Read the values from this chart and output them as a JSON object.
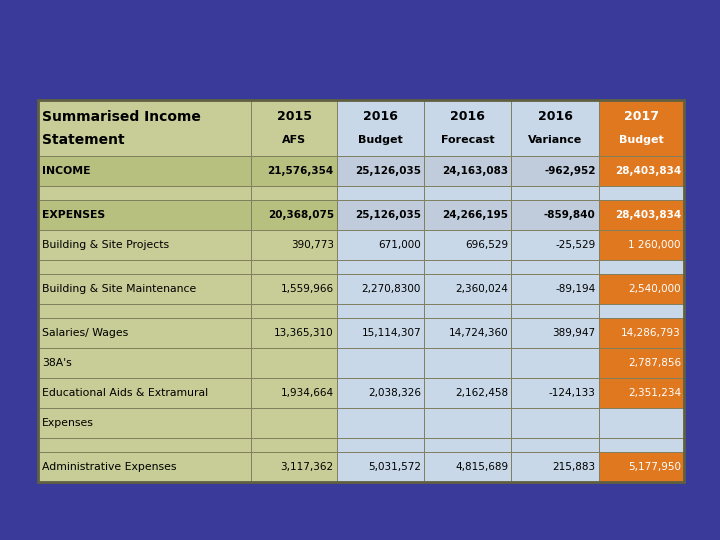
{
  "title_line1": "Summarised Income",
  "title_line2": "Statement",
  "col_headers": [
    "2015",
    "2016",
    "2016",
    "2016",
    "2017"
  ],
  "col_subheaders": [
    "AFS",
    "Budget",
    "Forecast",
    "Variance",
    "Budget"
  ],
  "rows": [
    {
      "label": "INCOME",
      "vals": [
        "21,576,354",
        "25,126,035",
        "24,163,083",
        "-962,952",
        "28,403,834"
      ],
      "label_bold": true,
      "row_style": "income"
    },
    {
      "label": "",
      "vals": [
        "",
        "",
        "",
        "",
        ""
      ],
      "label_bold": false,
      "row_style": "spacer"
    },
    {
      "label": "EXPENSES",
      "vals": [
        "20,368,075",
        "25,126,035",
        "24,266,195",
        "-859,840",
        "28,403,834"
      ],
      "label_bold": true,
      "row_style": "expense_header"
    },
    {
      "label": "Building & Site Projects",
      "vals": [
        "390,773",
        "671,000",
        "696,529",
        "-25,529",
        "1 260,000"
      ],
      "label_bold": false,
      "row_style": "normal"
    },
    {
      "label": "",
      "vals": [
        "",
        "",
        "",
        "",
        ""
      ],
      "label_bold": false,
      "row_style": "spacer"
    },
    {
      "label": "Building & Site Maintenance",
      "vals": [
        "1,559,966",
        "2,270,8300",
        "2,360,024",
        "-89,194",
        "2,540,000"
      ],
      "label_bold": false,
      "row_style": "normal"
    },
    {
      "label": "",
      "vals": [
        "",
        "",
        "",
        "",
        ""
      ],
      "label_bold": false,
      "row_style": "spacer"
    },
    {
      "label": "Salaries/ Wages",
      "vals": [
        "13,365,310",
        "15,114,307",
        "14,724,360",
        "389,947",
        "14,286,793"
      ],
      "label_bold": false,
      "row_style": "normal"
    },
    {
      "label": "38A's",
      "vals": [
        "",
        "",
        "",
        "",
        "2,787,856"
      ],
      "label_bold": false,
      "row_style": "normal"
    },
    {
      "label": "Educational Aids & Extramural",
      "vals": [
        "1,934,664",
        "2,038,326",
        "2,162,458",
        "-124,133",
        "2,351,234"
      ],
      "label_bold": false,
      "row_style": "normal"
    },
    {
      "label": "Expenses",
      "vals": [
        "",
        "",
        "",
        "",
        ""
      ],
      "label_bold": false,
      "row_style": "sub_label"
    },
    {
      "label": "",
      "vals": [
        "",
        "",
        "",
        "",
        ""
      ],
      "label_bold": false,
      "row_style": "spacer"
    },
    {
      "label": "Administrative Expenses",
      "vals": [
        "3,117,362",
        "5,031,572",
        "4,815,689",
        "215,883",
        "5,177,950"
      ],
      "label_bold": false,
      "row_style": "normal"
    }
  ],
  "bg_color": "#3a3a9a",
  "label_col_color": "#c8cc96",
  "col0_header_color": "#c8cc96",
  "col1_header_color": "#c8cc96",
  "col2_header_color": "#c8d8e8",
  "col3_header_color": "#c8d8e8",
  "col4_header_color": "#c8d8e8",
  "col5_header_color": "#e07820",
  "data_col_colors": [
    "#c8cc96",
    "#c8d8e8",
    "#c8d8e8",
    "#c8d8e8",
    "#e07820"
  ],
  "income_label_color": "#b8c080",
  "income_data_colors": [
    "#b8c080",
    "#c0ccdc",
    "#c0ccdc",
    "#c0ccdc",
    "#e07820"
  ],
  "expense_label_color": "#b8c080",
  "expense_data_colors": [
    "#b8c080",
    "#c0ccdc",
    "#c0ccdc",
    "#c0ccdc",
    "#e07820"
  ],
  "normal_label_color": "#c8cc96",
  "normal_data_colors": [
    "#c8cc96",
    "#c8d8e8",
    "#c8d8e8",
    "#c8d8e8",
    "#e07820"
  ],
  "spacer_label_color": "#c8cc96",
  "spacer_data_colors": [
    "#c8cc96",
    "#c8d8e8",
    "#c8d8e8",
    "#c8d8e8",
    "#c8d8e8"
  ],
  "border_color": "#808060",
  "text_dark": "#000000",
  "text_white": "#ffffff"
}
